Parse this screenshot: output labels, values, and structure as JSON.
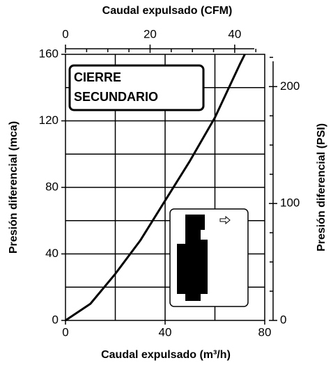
{
  "chart_data": {
    "type": "line",
    "x2_label": "Caudal expulsado (CFM)",
    "x_label": "Caudal expulsado (m³/h)",
    "y_label": "Presión diferencial (mca)",
    "y2_label": "Presión diferencial (PSI)",
    "annotation": [
      "CIERRE",
      "SECUNDARIO"
    ],
    "x": [
      0,
      10,
      20,
      30,
      40,
      50,
      60,
      70,
      72
    ],
    "values": [
      0,
      10,
      28,
      48,
      72,
      96,
      122,
      154,
      160
    ],
    "color": "#000000",
    "xlim": [
      0,
      80
    ],
    "xticks": [
      0,
      40,
      80
    ],
    "xgrid": [
      20,
      40,
      60
    ],
    "x2lim": [
      0,
      47.1
    ],
    "x2ticks": [
      0,
      20,
      40
    ],
    "x2minor": [
      5,
      10,
      15,
      25,
      30,
      35,
      45
    ],
    "ylim": [
      0,
      160
    ],
    "yticks": [
      0,
      40,
      80,
      120,
      160
    ],
    "ygrid": [
      20,
      40,
      60,
      80,
      100,
      120,
      140
    ],
    "y2lim": [
      0,
      227.6
    ],
    "y2ticks": [
      0,
      100,
      200
    ],
    "y2minor": [
      25,
      50,
      75,
      125,
      150,
      175,
      225
    ],
    "grid": true
  }
}
